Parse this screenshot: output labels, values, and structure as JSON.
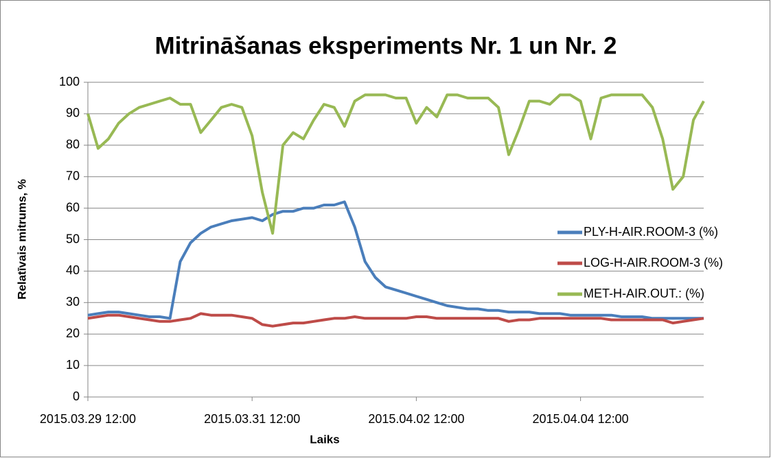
{
  "chart_data": {
    "type": "line",
    "title": "Mitrināšanas eksperiments Nr. 1 un Nr. 2",
    "xlabel": "Laiks",
    "ylabel": "Relatīvais mitrums, %",
    "x": [
      "2015.03.29 12:00",
      "2015.03.29 15:00",
      "2015.03.29 18:00",
      "2015.03.29 21:00",
      "2015.03.30 00:00",
      "2015.03.30 03:00",
      "2015.03.30 06:00",
      "2015.03.30 09:00",
      "2015.03.30 12:00",
      "2015.03.30 15:00",
      "2015.03.30 18:00",
      "2015.03.30 21:00",
      "2015.03.31 00:00",
      "2015.03.31 03:00",
      "2015.03.31 06:00",
      "2015.03.31 09:00",
      "2015.03.31 12:00",
      "2015.03.31 15:00",
      "2015.03.31 18:00",
      "2015.03.31 21:00",
      "2015.04.01 00:00",
      "2015.04.01 03:00",
      "2015.04.01 06:00",
      "2015.04.01 09:00",
      "2015.04.01 12:00",
      "2015.04.01 15:00",
      "2015.04.01 18:00",
      "2015.04.01 21:00",
      "2015.04.02 00:00",
      "2015.04.02 03:00",
      "2015.04.02 06:00",
      "2015.04.02 09:00",
      "2015.04.02 12:00",
      "2015.04.02 15:00",
      "2015.04.02 18:00",
      "2015.04.02 21:00",
      "2015.04.03 00:00",
      "2015.04.03 03:00",
      "2015.04.03 06:00",
      "2015.04.03 09:00",
      "2015.04.03 12:00",
      "2015.04.03 15:00",
      "2015.04.03 18:00",
      "2015.04.03 21:00",
      "2015.04.04 00:00",
      "2015.04.04 03:00",
      "2015.04.04 06:00",
      "2015.04.04 09:00",
      "2015.04.04 12:00",
      "2015.04.04 15:00",
      "2015.04.04 18:00",
      "2015.04.04 21:00",
      "2015.04.05 00:00",
      "2015.04.05 03:00",
      "2015.04.05 06:00",
      "2015.04.05 09:00",
      "2015.04.05 12:00",
      "2015.04.05 15:00",
      "2015.04.05 18:00",
      "2015.04.05 21:00",
      "2015.04.06 00:00"
    ],
    "series": [
      {
        "name": "PLY-H-AIR.ROOM-3 (%)",
        "color": "#4a7ebb",
        "values": [
          26,
          26.5,
          27,
          27,
          26.5,
          26,
          25.5,
          25.5,
          25,
          43,
          49,
          52,
          54,
          55,
          56,
          56.5,
          57,
          56,
          58,
          59,
          59,
          60,
          60,
          61,
          61,
          62,
          54,
          43,
          38,
          35,
          34,
          33,
          32,
          31,
          30,
          29,
          28.5,
          28,
          28,
          27.5,
          27.5,
          27,
          27,
          27,
          26.5,
          26.5,
          26.5,
          26,
          26,
          26,
          26,
          26,
          25.5,
          25.5,
          25.5,
          25,
          25,
          25,
          25,
          25,
          25
        ]
      },
      {
        "name": "LOG-H-AIR.ROOM-3 (%)",
        "color": "#be4b48",
        "values": [
          25,
          25.5,
          26,
          26,
          25.5,
          25,
          24.5,
          24,
          24,
          24.5,
          25,
          26.5,
          26,
          26,
          26,
          25.5,
          25,
          23,
          22.5,
          23,
          23.5,
          23.5,
          24,
          24.5,
          25,
          25,
          25.5,
          25,
          25,
          25,
          25,
          25,
          25.5,
          25.5,
          25,
          25,
          25,
          25,
          25,
          25,
          25,
          24,
          24.5,
          24.5,
          25,
          25,
          25,
          25,
          25,
          25,
          25,
          24.5,
          24.5,
          24.5,
          24.5,
          24.5,
          24.5,
          23.5,
          24,
          24.5,
          25
        ]
      },
      {
        "name": "MET-H-AIR.OUT.: (%)",
        "color": "#98b954",
        "values": [
          90,
          79,
          82,
          87,
          90,
          92,
          93,
          94,
          95,
          93,
          93,
          84,
          88,
          92,
          93,
          92,
          83,
          65,
          52,
          80,
          84,
          82,
          88,
          93,
          92,
          86,
          94,
          96,
          96,
          96,
          95,
          95,
          87,
          92,
          89,
          96,
          96,
          95,
          95,
          95,
          92,
          77,
          85,
          94,
          94,
          93,
          96,
          96,
          94,
          82,
          95,
          96,
          96,
          96,
          96,
          92,
          82,
          66,
          70,
          88,
          94
        ]
      }
    ],
    "xlim": [
      "2015.03.29 12:00",
      "2015.04.06 00:00"
    ],
    "xticks": [
      "2015.03.29 12:00",
      "2015.03.31 12:00",
      "2015.04.02 12:00",
      "2015.04.04 12:00"
    ],
    "ylim": [
      0,
      100
    ],
    "yticks": [
      0,
      10,
      20,
      30,
      40,
      50,
      60,
      70,
      80,
      90,
      100
    ],
    "grid": true,
    "legend": "right"
  }
}
